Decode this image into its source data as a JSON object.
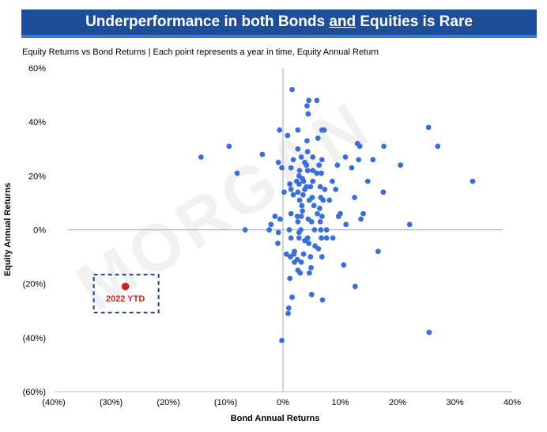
{
  "banner": {
    "title_part1": "Underperformance in both Bonds ",
    "title_and": "and",
    "title_part2": " Equities is Rare"
  },
  "subtitle": "Equity Returns vs Bond Returns | Each point represents a year in time, Equity Annual Return",
  "watermark": "MORGAN",
  "colors": {
    "banner": "#1f4e99",
    "points": "#3a6fd8",
    "highlight": "#c0281c",
    "callout_border": "#1f3f8a"
  },
  "chart_data": {
    "type": "scatter",
    "title": "",
    "xlabel": "Bond Annual Returns",
    "ylabel": "Equity Annual Returns",
    "xlim": [
      -40,
      40
    ],
    "ylim": [
      -60,
      60
    ],
    "x_ticks": [
      -40,
      -30,
      -20,
      -10,
      0,
      10,
      20,
      30,
      40
    ],
    "x_tick_labels": [
      "(40%)",
      "(30%)",
      "(20%)",
      "(10%)",
      "0%",
      "10%",
      "20%",
      "30%",
      "40%"
    ],
    "y_ticks": [
      60,
      40,
      20,
      0,
      -20,
      -40,
      -60
    ],
    "y_tick_labels": [
      "60%",
      "40%",
      "20%",
      "0%",
      "(20%)",
      "(40%)",
      "(60%)"
    ],
    "grid": false,
    "series": [
      {
        "points": [
          [
            1.6,
            52
          ],
          [
            4.2,
            46
          ],
          [
            4.5,
            48
          ],
          [
            5.9,
            48
          ],
          [
            4.4,
            43
          ],
          [
            -0.6,
            37
          ],
          [
            2.6,
            37
          ],
          [
            6.8,
            37
          ],
          [
            7.2,
            37
          ],
          [
            25.4,
            38
          ],
          [
            6.1,
            34
          ],
          [
            0.8,
            35
          ],
          [
            4.2,
            33
          ],
          [
            13.0,
            32
          ],
          [
            13.4,
            31
          ],
          [
            -9.4,
            31
          ],
          [
            17.6,
            31
          ],
          [
            27.0,
            31
          ],
          [
            -3.6,
            28
          ],
          [
            -14.3,
            27
          ],
          [
            2.6,
            30
          ],
          [
            4.3,
            29
          ],
          [
            3.2,
            27
          ],
          [
            5.2,
            27
          ],
          [
            6.8,
            26
          ],
          [
            10.9,
            27
          ],
          [
            -0.8,
            25
          ],
          [
            13.2,
            26
          ],
          [
            15.7,
            26
          ],
          [
            1.8,
            26
          ],
          [
            3.8,
            25
          ],
          [
            6.3,
            24
          ],
          [
            4.1,
            24
          ],
          [
            9.5,
            24
          ],
          [
            12.0,
            23
          ],
          [
            20.5,
            24
          ],
          [
            -0.2,
            23
          ],
          [
            1.4,
            23
          ],
          [
            2.9,
            22
          ],
          [
            4.3,
            22
          ],
          [
            5.2,
            22
          ],
          [
            5.9,
            21
          ],
          [
            -8.0,
            21
          ],
          [
            6.7,
            21
          ],
          [
            2.8,
            20
          ],
          [
            3.4,
            19
          ],
          [
            2.4,
            18
          ],
          [
            3.6,
            18
          ],
          [
            5.2,
            18
          ],
          [
            8.6,
            18
          ],
          [
            2.8,
            17
          ],
          [
            4.1,
            16
          ],
          [
            6.5,
            16
          ],
          [
            14.8,
            18
          ],
          [
            33.1,
            18
          ],
          [
            1.2,
            17
          ],
          [
            3.8,
            15
          ],
          [
            4.8,
            16
          ],
          [
            7.3,
            15
          ],
          [
            1.4,
            15
          ],
          [
            9.2,
            15
          ],
          [
            17.5,
            14
          ],
          [
            0.2,
            14
          ],
          [
            2.6,
            14
          ],
          [
            3.5,
            13
          ],
          [
            5.1,
            12
          ],
          [
            6.6,
            12
          ],
          [
            12.5,
            12
          ],
          [
            1.8,
            13
          ],
          [
            2.9,
            11
          ],
          [
            4.6,
            11
          ],
          [
            7.0,
            11
          ],
          [
            8.1,
            11
          ],
          [
            3.3,
            9
          ],
          [
            5.4,
            9
          ],
          [
            6.4,
            8
          ],
          [
            3.4,
            7
          ],
          [
            1.4,
            6
          ],
          [
            6.0,
            6
          ],
          [
            10.0,
            6
          ],
          [
            14.0,
            6
          ],
          [
            3.2,
            5
          ],
          [
            6.8,
            5
          ],
          [
            -1.4,
            5
          ],
          [
            2.5,
            5
          ],
          [
            9.7,
            5
          ],
          [
            13.6,
            4
          ],
          [
            -0.5,
            4
          ],
          [
            4.4,
            4
          ],
          [
            6.5,
            3
          ],
          [
            2.6,
            3
          ],
          [
            5.0,
            3
          ],
          [
            -2.1,
            2
          ],
          [
            11.0,
            2
          ],
          [
            22.1,
            2
          ],
          [
            -6.6,
            0
          ],
          [
            -2.4,
            0
          ],
          [
            1.1,
            0
          ],
          [
            3.1,
            0
          ],
          [
            5.5,
            0
          ],
          [
            6.6,
            0
          ],
          [
            7.6,
            0
          ],
          [
            -0.8,
            -1
          ],
          [
            2.8,
            -1
          ],
          [
            1.4,
            -3
          ],
          [
            4.3,
            -3
          ],
          [
            8.7,
            -3
          ],
          [
            6.7,
            -3
          ],
          [
            7.6,
            -3
          ],
          [
            2.8,
            -3
          ],
          [
            3.8,
            -4
          ],
          [
            4.5,
            -5
          ],
          [
            -0.9,
            -5
          ],
          [
            5.6,
            -6
          ],
          [
            2.0,
            -8
          ],
          [
            6.2,
            -7
          ],
          [
            16.6,
            -8
          ],
          [
            1.9,
            -9
          ],
          [
            3.6,
            -9
          ],
          [
            4.8,
            -10
          ],
          [
            6.8,
            -10
          ],
          [
            0.6,
            -9
          ],
          [
            1.3,
            -10
          ],
          [
            2.5,
            -11
          ],
          [
            3.2,
            -12
          ],
          [
            2.0,
            -12
          ],
          [
            10.6,
            -13
          ],
          [
            4.9,
            -14
          ],
          [
            2.6,
            -15
          ],
          [
            3.0,
            -16
          ],
          [
            4.6,
            -16
          ],
          [
            1.2,
            -18
          ],
          [
            12.6,
            -21
          ],
          [
            5.0,
            -24
          ],
          [
            1.6,
            -25
          ],
          [
            6.9,
            -26
          ],
          [
            1.0,
            -29
          ],
          [
            0.9,
            -31
          ],
          [
            25.5,
            -38
          ],
          [
            -0.2,
            -41
          ]
        ]
      },
      {
        "name": "2022 YTD",
        "points": [
          [
            -27.5,
            -21
          ]
        ]
      }
    ],
    "annotation": "2022 YTD"
  }
}
